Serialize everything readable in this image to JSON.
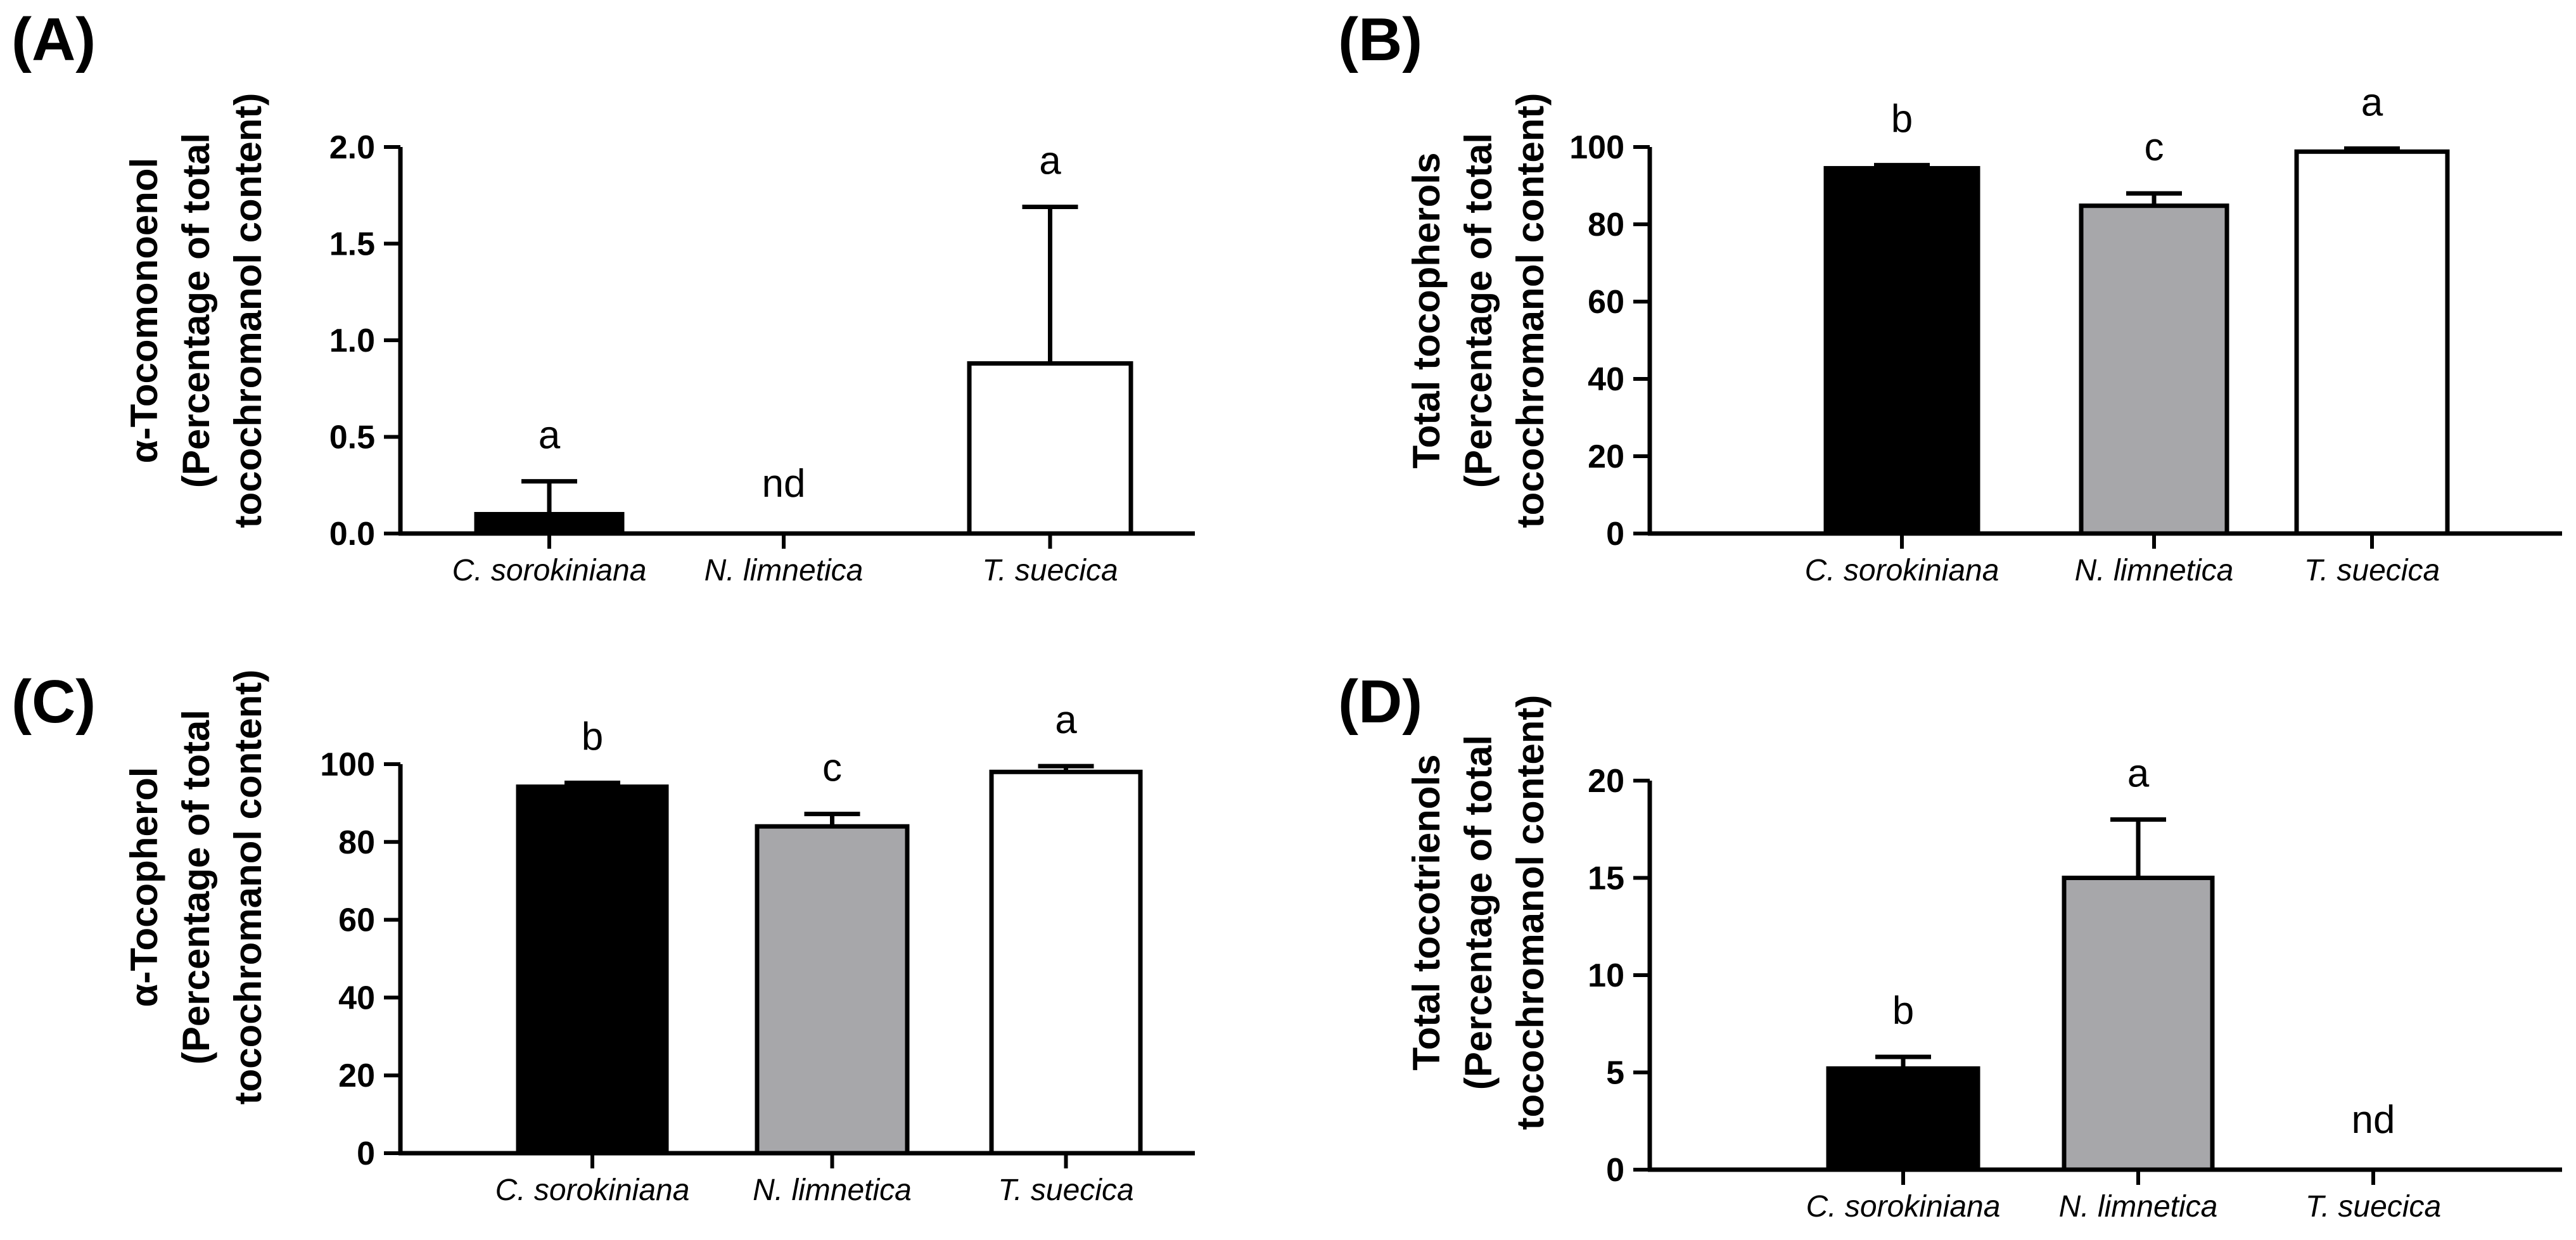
{
  "colors": {
    "black": "#000000",
    "gray": "#a7a7aa",
    "white": "#ffffff"
  },
  "chart_data": [
    {
      "panel": "(A)",
      "type": "bar",
      "categories": [
        "C. sorokiniana",
        "N. limnetica",
        "T. suecica"
      ],
      "values": [
        0.1,
        null,
        0.88
      ],
      "errors": [
        0.17,
        null,
        0.81
      ],
      "labels": [
        "a",
        "nd",
        "a"
      ],
      "bar_colors": [
        "#000000",
        "#a7a7aa",
        "#ffffff"
      ],
      "ylabel_lines": [
        "α-Tocomonoenol",
        "(Percentage of total",
        "tocochromanol content)"
      ],
      "ylim": [
        0,
        2.0
      ],
      "yticks": [
        "0.0",
        "0.5",
        "1.0",
        "1.5",
        "2.0"
      ]
    },
    {
      "panel": "(B)",
      "type": "bar",
      "categories": [
        "C. sorokiniana",
        "N. limnetica",
        "T. suecica"
      ],
      "values": [
        94.5,
        84.8,
        98.8
      ],
      "errors": [
        0.8,
        3.2,
        0.8
      ],
      "labels": [
        "b",
        "c",
        "a"
      ],
      "bar_colors": [
        "#000000",
        "#a7a7aa",
        "#ffffff"
      ],
      "ylabel_lines": [
        "Total tocopherols",
        "(Percentage of total",
        "tocochromanol content)"
      ],
      "ylim": [
        0,
        100
      ],
      "yticks": [
        "0",
        "20",
        "40",
        "60",
        "80",
        "100"
      ]
    },
    {
      "panel": "(C)",
      "type": "bar",
      "categories": [
        "C. sorokiniana",
        "N. limnetica",
        "T. suecica"
      ],
      "values": [
        94.2,
        84.0,
        98.0
      ],
      "errors": [
        1.0,
        3.2,
        1.5
      ],
      "labels": [
        "b",
        "c",
        "a"
      ],
      "bar_colors": [
        "#000000",
        "#a7a7aa",
        "#ffffff"
      ],
      "ylabel_lines": [
        "α-Tocopherol",
        "(Percentage of total",
        "tocochromanol content)"
      ],
      "ylim": [
        0,
        100
      ],
      "yticks": [
        "0",
        "20",
        "40",
        "60",
        "80",
        "100"
      ]
    },
    {
      "panel": "(D)",
      "type": "bar",
      "categories": [
        "C. sorokiniana",
        "N. limnetica",
        "T. suecica"
      ],
      "values": [
        5.2,
        15.0,
        null
      ],
      "errors": [
        0.6,
        3.0,
        null
      ],
      "labels": [
        "b",
        "a",
        "nd"
      ],
      "bar_colors": [
        "#000000",
        "#a7a7aa",
        "#ffffff"
      ],
      "ylabel_lines": [
        "Total tocotrienols",
        "(Percentage of total",
        "tocochromanol content)"
      ],
      "ylim": [
        0,
        20
      ],
      "yticks": [
        "0",
        "5",
        "10",
        "15",
        "20"
      ]
    }
  ]
}
